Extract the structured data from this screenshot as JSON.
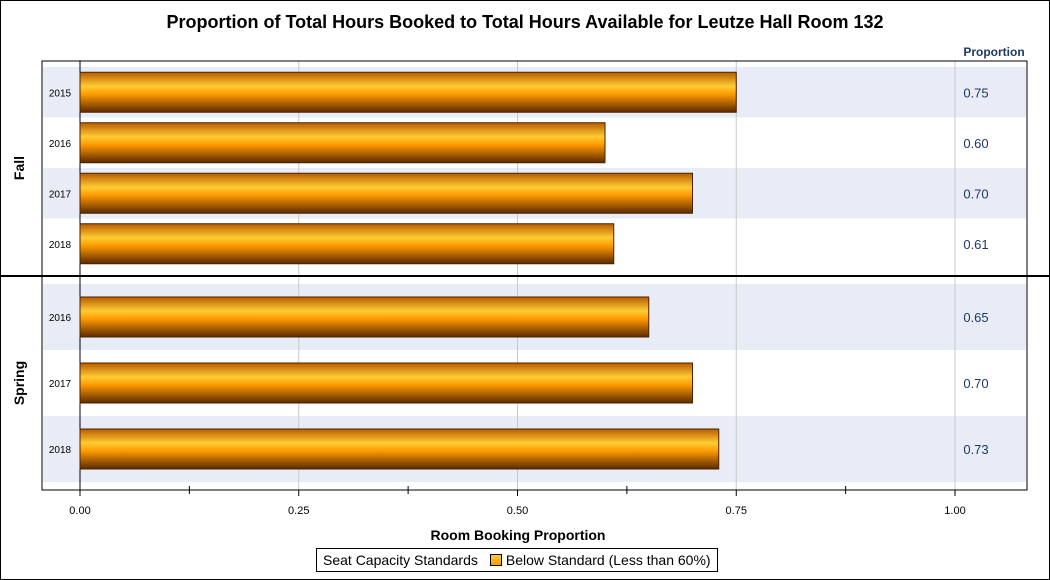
{
  "chart_data": {
    "type": "bar",
    "orientation": "horizontal",
    "title": "Proportion of Total Hours Booked to Total Hours Available for Leutze Hall Room 132",
    "xlabel": "Room Booking Proportion",
    "value_column_header": "Proportion",
    "xlim": [
      0,
      1.0
    ],
    "xticks": [
      "0.00",
      "0.25",
      "0.50",
      "0.75",
      "1.00"
    ],
    "grid": true,
    "groups": [
      {
        "name": "Fall",
        "categories": [
          "2015",
          "2016",
          "2017",
          "2018"
        ],
        "values": [
          0.75,
          0.6,
          0.7,
          0.61
        ],
        "value_labels": [
          "0.75",
          "0.60",
          "0.70",
          "0.61"
        ]
      },
      {
        "name": "Spring",
        "categories": [
          "2016",
          "2017",
          "2018"
        ],
        "values": [
          0.65,
          0.7,
          0.73
        ],
        "value_labels": [
          "0.65",
          "0.70",
          "0.73"
        ]
      }
    ],
    "legend": {
      "title": "Seat Capacity Standards",
      "entries": [
        "Below Standard (Less than 60%)"
      ],
      "placement": "bottom"
    },
    "colors": {
      "bar_light": "#ffcc33",
      "bar_mid": "#ff9900",
      "bar_dark": "#5a2a00",
      "band": "#e8ecf6",
      "value_text": "#1f3864",
      "header_text": "#1f3864"
    }
  }
}
